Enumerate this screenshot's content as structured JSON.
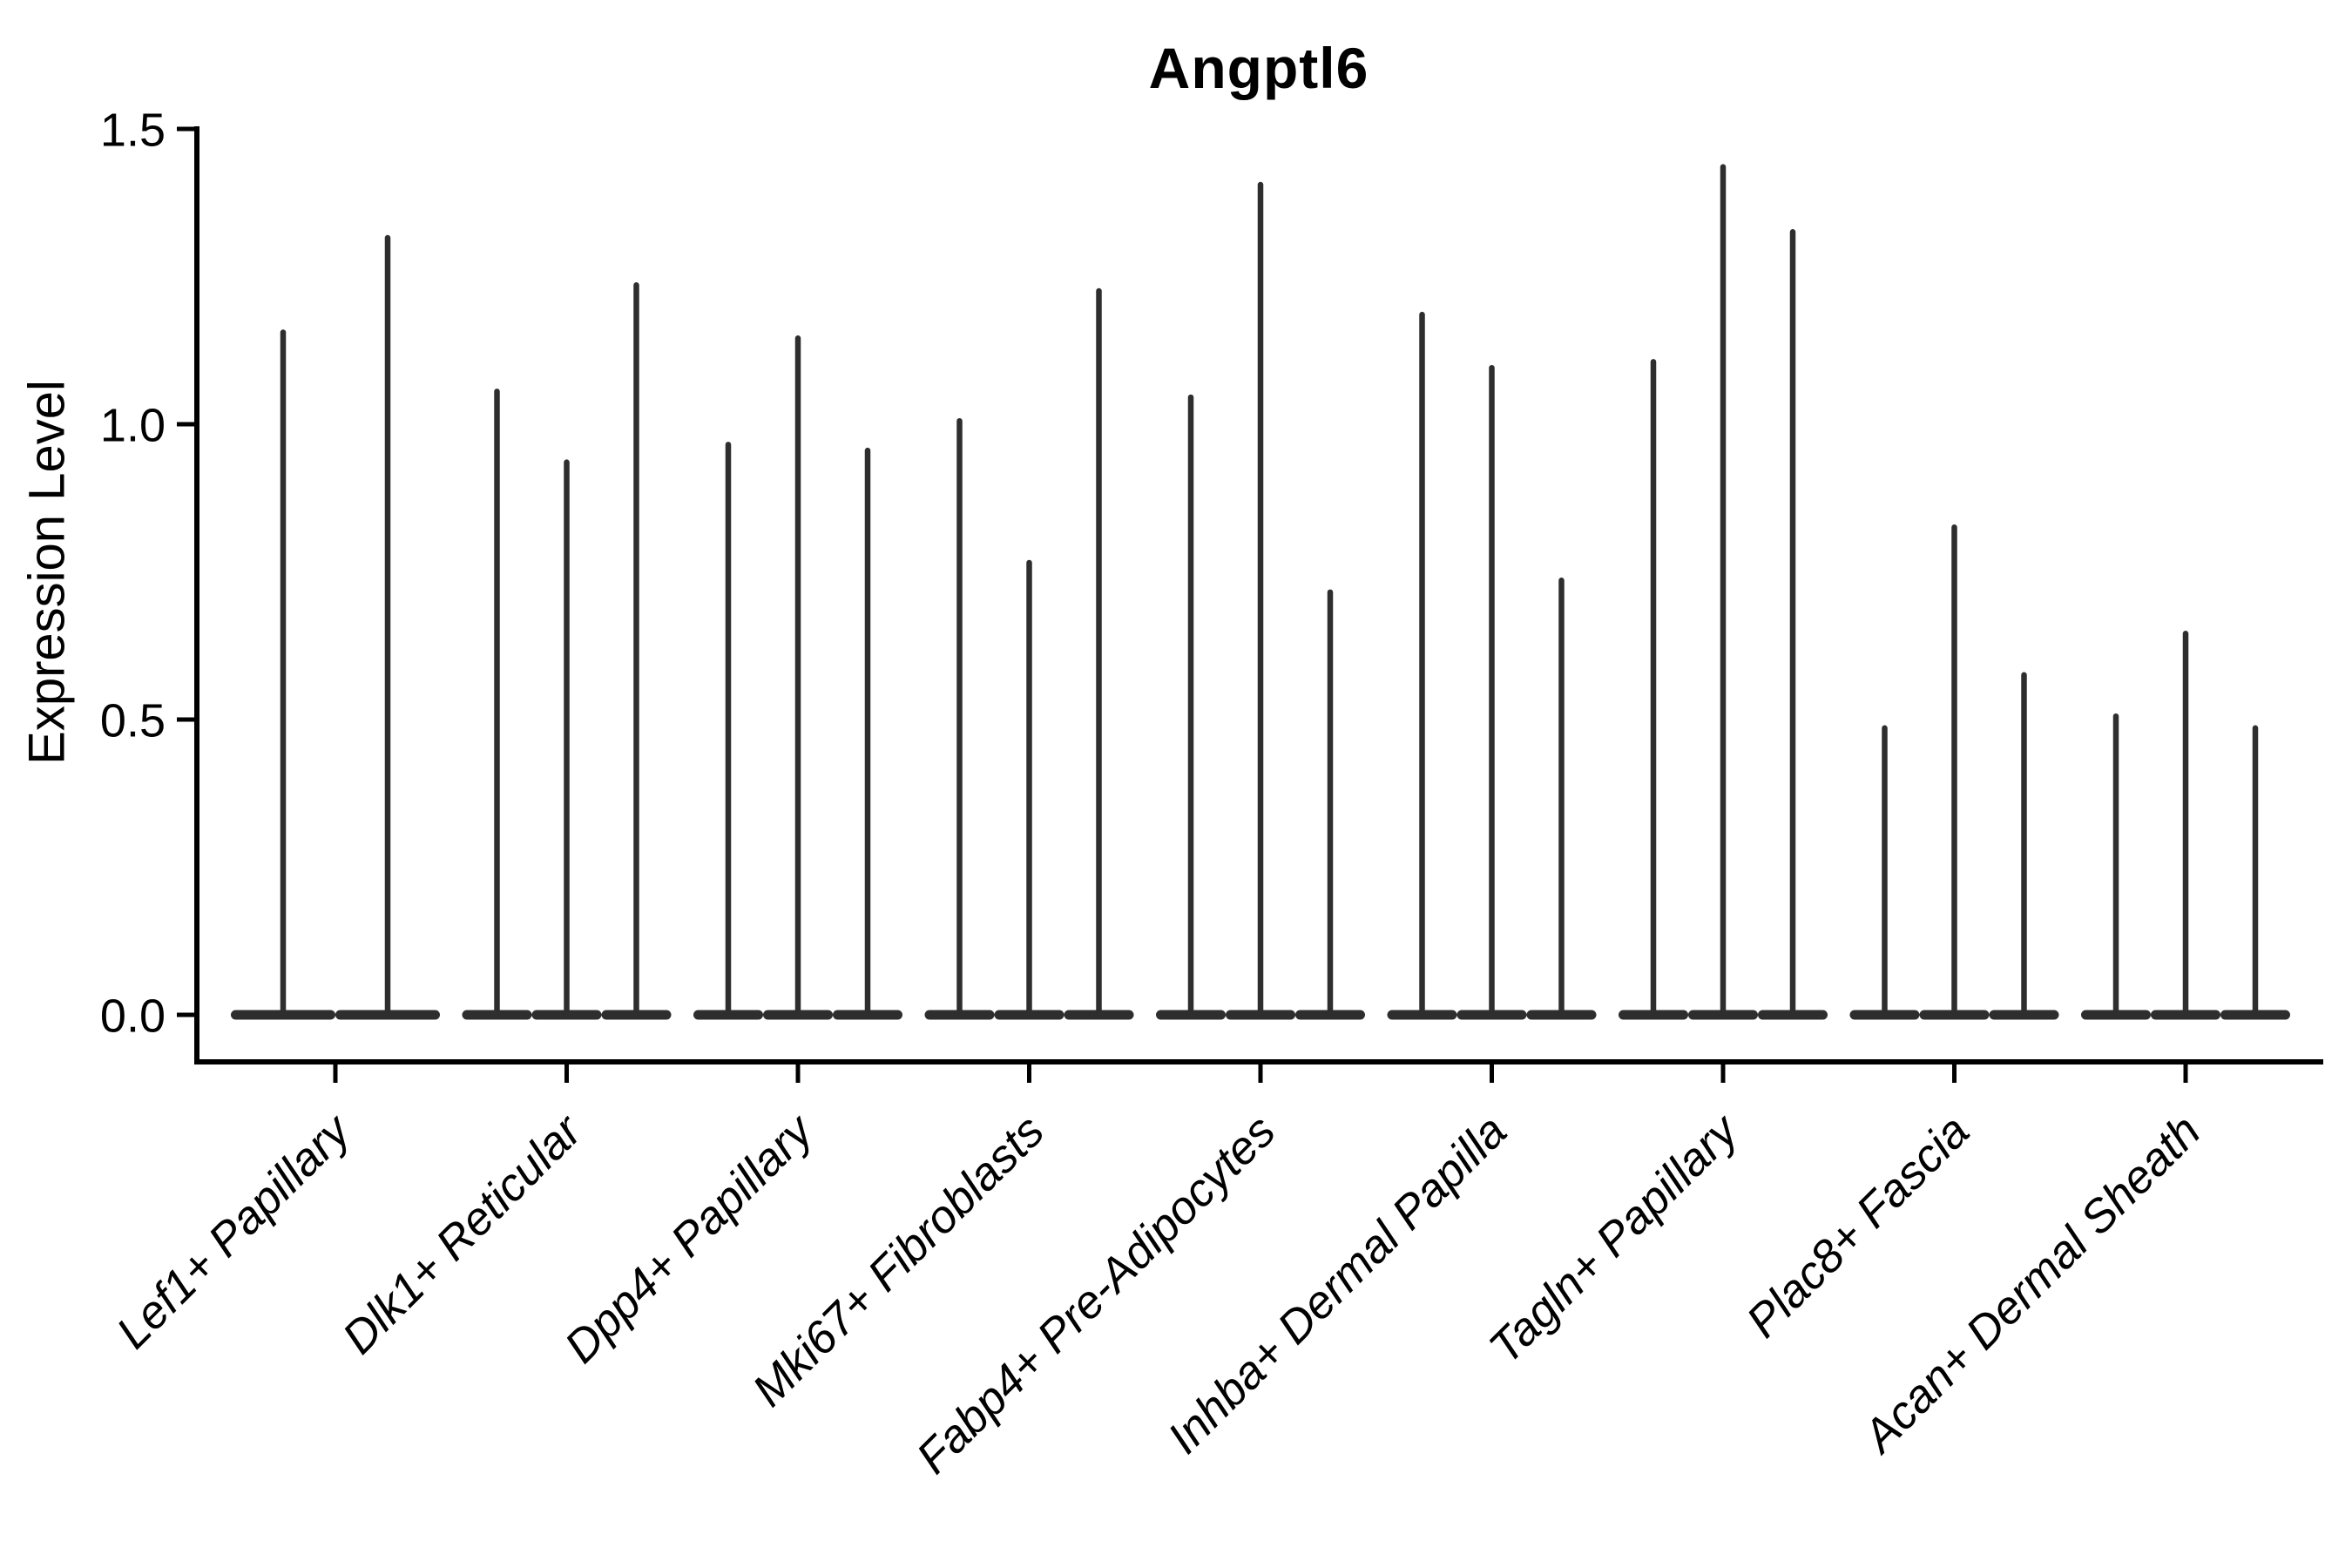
{
  "title": "Angptl6",
  "y_axis": {
    "label": "Expression Level",
    "ticks": [
      "1.5",
      "1.0",
      "0.5",
      "0.0"
    ],
    "tick_values": [
      1.5,
      1.0,
      0.5,
      0.0
    ]
  },
  "colors": {
    "violin": "#2e2e2e",
    "axis": "#000000",
    "text": "#000000",
    "background": "#ffffff"
  },
  "chart_data": {
    "type": "violin",
    "title": "Angptl6",
    "xlabel": "",
    "ylabel": "Expression Level",
    "ylim": [
      0,
      1.5
    ],
    "yticks": [
      0.0,
      0.5,
      1.0,
      1.5
    ],
    "grid": false,
    "legend_position": "none",
    "x_tick_rotation": 45,
    "description": "Single-cell expression violin plot; each category shows 2-3 extremely thin violins (one per sample/replicate) with dense mass at 0 and a thin tail reaching the listed maximum expression value.",
    "categories": [
      "Lef1+ Papillary",
      "Dlk1+ Reticular",
      "Dpp4+ Papillary",
      "Mki67+ Fibroblasts",
      "Fabp4+ Pre-Adipocytes",
      "Inhba+ Dermal Papilla",
      "Tagln+ Papillary",
      "Plac8+ Fascia",
      "Acan+ Dermal Sheath"
    ],
    "series": [
      {
        "name": "Lef1+ Papillary",
        "violin_max_values": [
          1.16,
          1.32
        ]
      },
      {
        "name": "Dlk1+ Reticular",
        "violin_max_values": [
          1.06,
          0.94,
          1.24
        ]
      },
      {
        "name": "Dpp4+ Papillary",
        "violin_max_values": [
          0.97,
          1.15,
          0.96
        ]
      },
      {
        "name": "Mki67+ Fibroblasts",
        "violin_max_values": [
          1.01,
          0.77,
          1.23
        ]
      },
      {
        "name": "Fabp4+ Pre-Adipocytes",
        "violin_max_values": [
          1.05,
          1.41,
          0.72
        ]
      },
      {
        "name": "Inhba+ Dermal Papilla",
        "violin_max_values": [
          1.19,
          1.1,
          0.74
        ]
      },
      {
        "name": "Tagln+ Papillary",
        "violin_max_values": [
          1.11,
          1.44,
          1.33
        ]
      },
      {
        "name": "Plac8+ Fascia",
        "violin_max_values": [
          0.49,
          0.83,
          0.58
        ]
      },
      {
        "name": "Acan+ Dermal Sheath",
        "violin_max_values": [
          0.51,
          0.65,
          0.49
        ]
      }
    ]
  }
}
